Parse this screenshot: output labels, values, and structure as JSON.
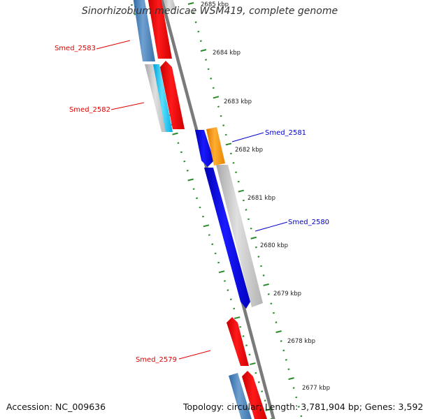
{
  "title": "Sinorhizobium medicae WSM419, complete genome",
  "footer": {
    "accession": "Accession: NC_009636",
    "summary": "Topology: circular; Length: 3,781,904 bp; Genes: 3,592"
  },
  "ticks": [
    "2685 kbp",
    "2684 kbp",
    "2683 kbp",
    "2682 kbp",
    "2681 kbp",
    "2680 kbp",
    "2679 kbp",
    "2678 kbp",
    "2677 kbp"
  ],
  "gene_labels": [
    {
      "name": "Smed_2583",
      "strand": "reverse",
      "color": "#e00000"
    },
    {
      "name": "Smed_2582",
      "strand": "reverse",
      "color": "#e00000"
    },
    {
      "name": "Smed_2581",
      "strand": "forward",
      "color": "#0000cc"
    },
    {
      "name": "Smed_2580",
      "strand": "forward",
      "color": "#0000cc"
    },
    {
      "name": "Smed_2579",
      "strand": "reverse",
      "color": "#e00000"
    }
  ],
  "colors": {
    "reverse_cds": "#ff0000",
    "forward_cds": "#0000ee",
    "reverse_gene": "#4a7fb5",
    "forward_gene": "#ff9900",
    "orf": "#c0c0c0",
    "highlight": "#1ec8f0",
    "backbone": "#808080",
    "tick_marks": "#2a8a2a"
  }
}
